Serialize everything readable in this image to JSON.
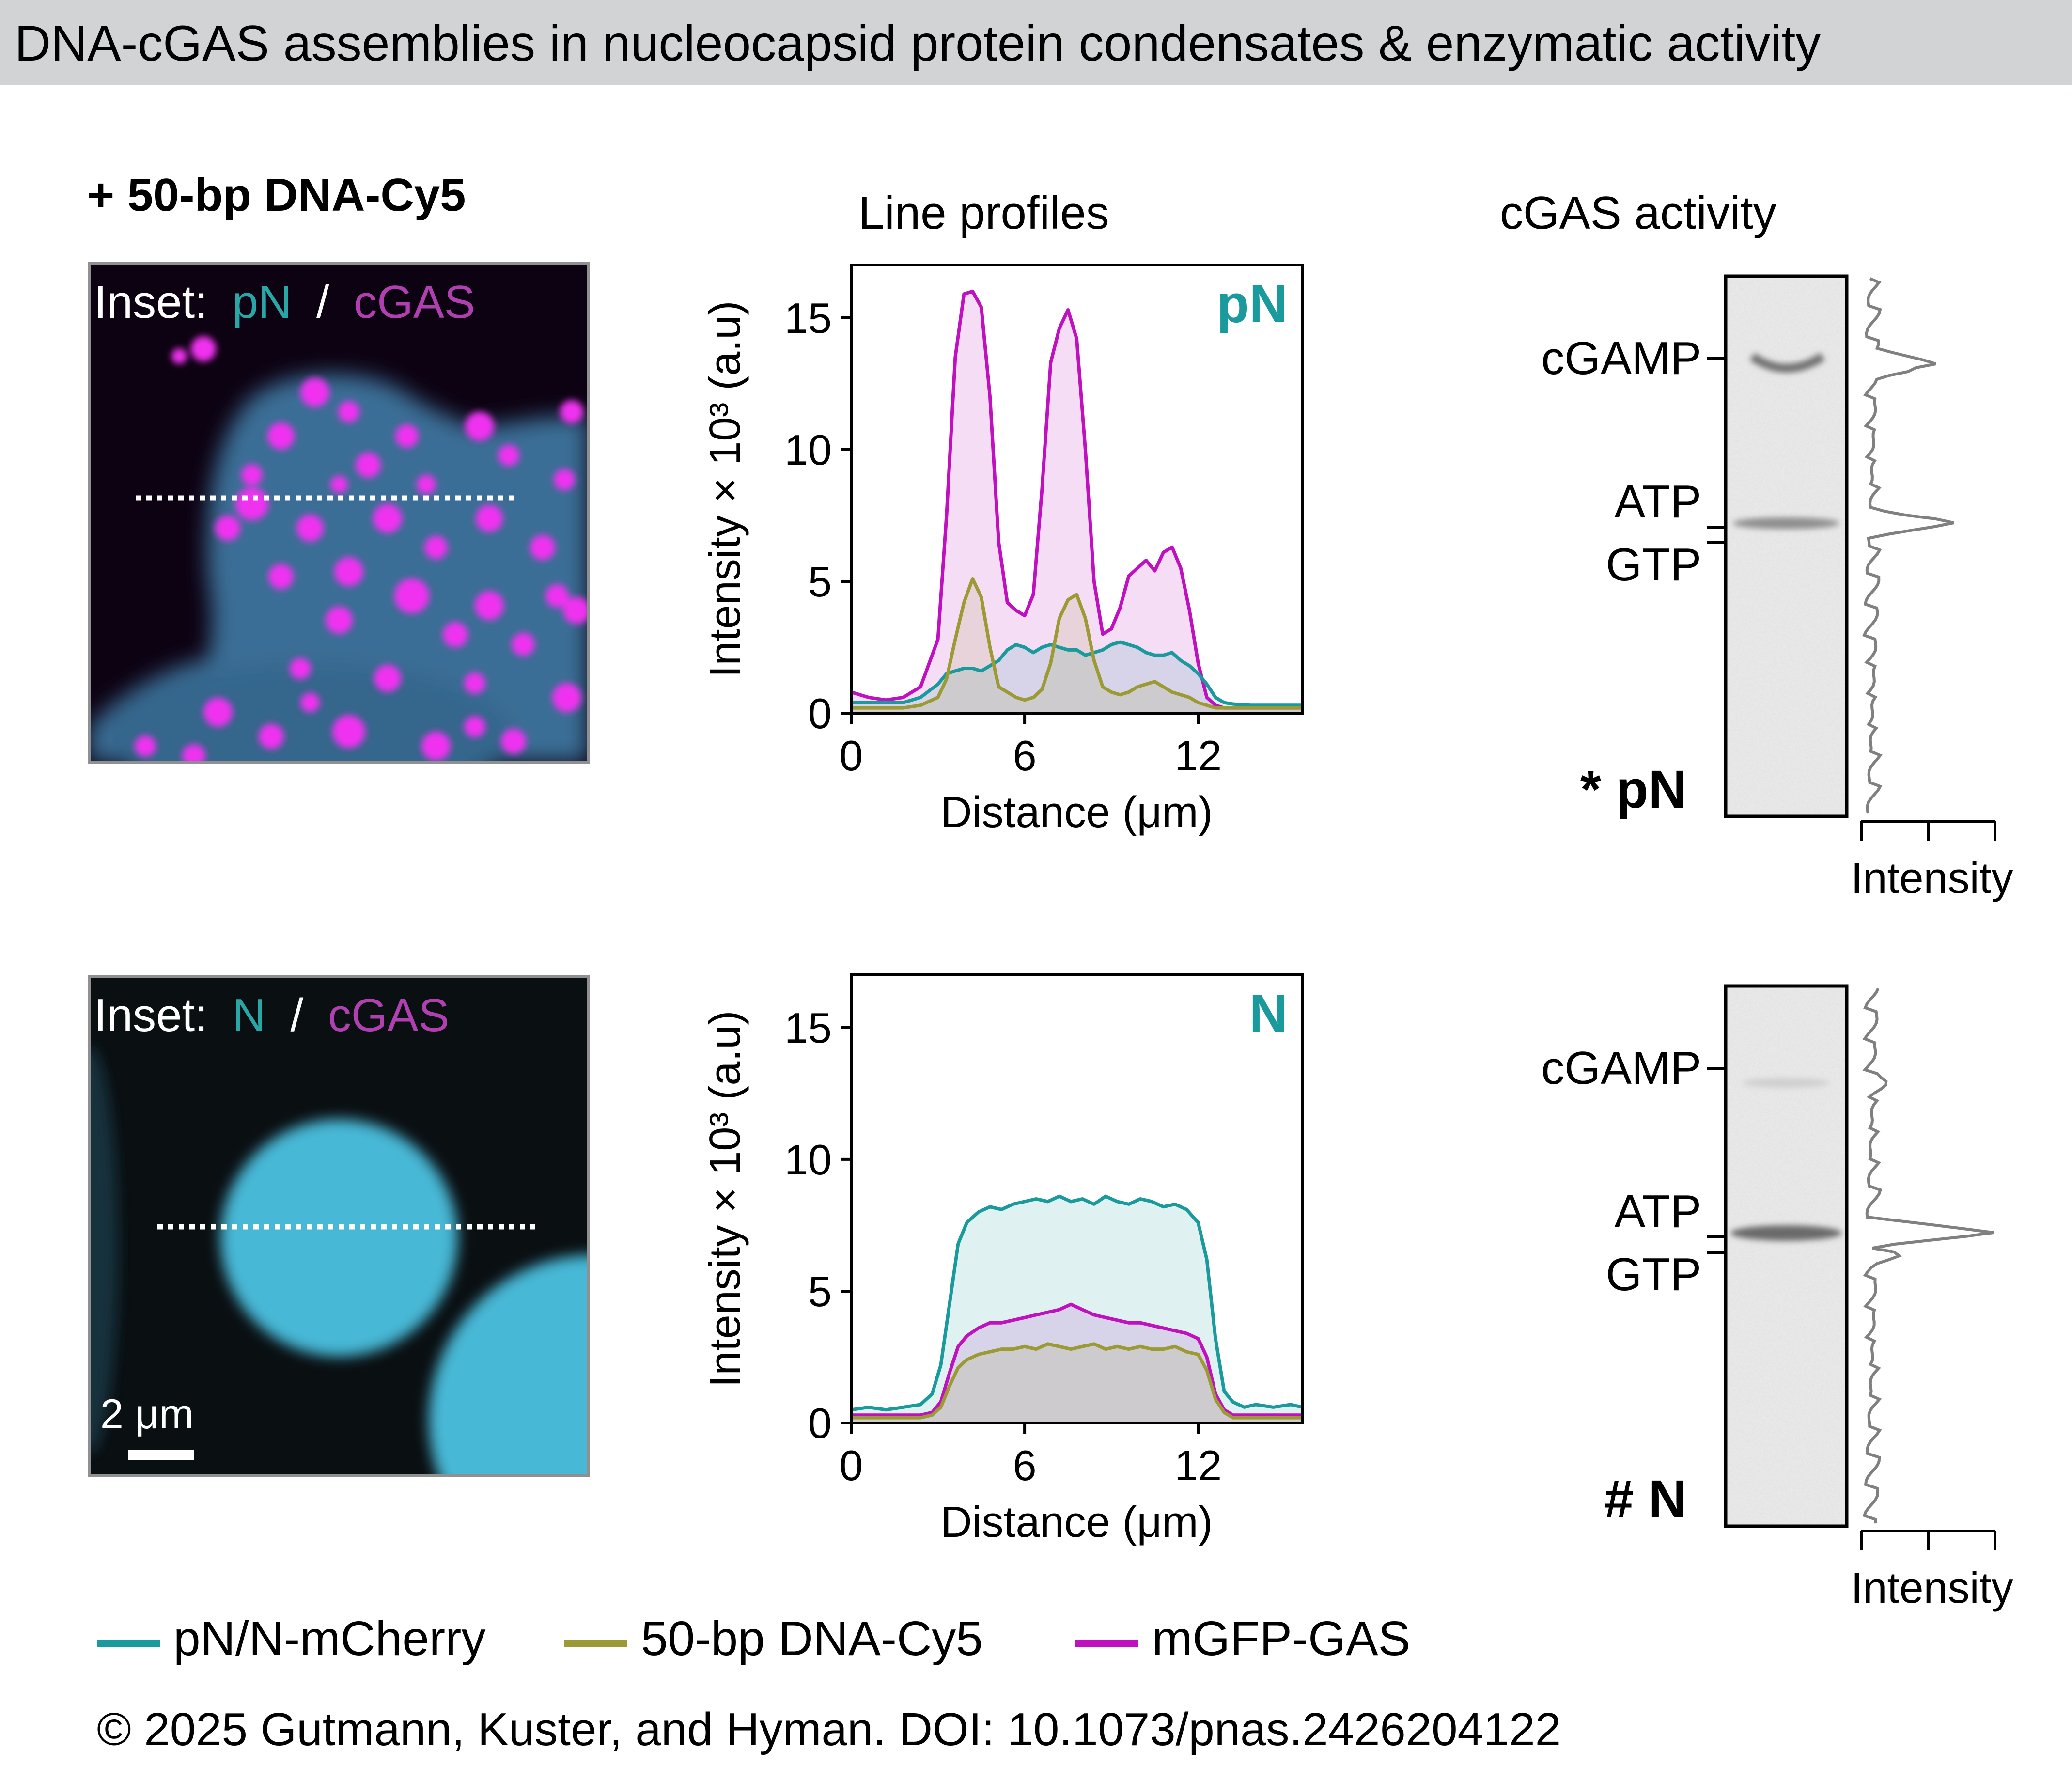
{
  "header": {
    "title": "DNA-cGAS assemblies in nucleocapsid protein condensates & enzymatic activity"
  },
  "condition_label": "+ 50-bp DNA-Cy5",
  "column_titles": {
    "profiles": "Line profiles",
    "activity": "cGAS activity"
  },
  "panels": [
    {
      "id": "pN",
      "inset": {
        "prefix": "Inset:",
        "protein": "pN",
        "separator": "/",
        "partner": "cGAS"
      },
      "chart_data": {
        "type": "area",
        "panel_label": "pN",
        "xlabel": "Distance (μm)",
        "ylabel": "Intensity × 10³ (a.u)",
        "xlim": [
          0,
          15.6
        ],
        "ylim": [
          0,
          17
        ],
        "xticks": [
          0,
          6,
          12
        ],
        "yticks": [
          0,
          5,
          10,
          15
        ],
        "grid": false,
        "x": [
          0,
          0.6,
          1.2,
          1.8,
          2.4,
          3.0,
          3.3,
          3.6,
          3.9,
          4.2,
          4.5,
          4.8,
          5.1,
          5.4,
          5.7,
          6.0,
          6.3,
          6.6,
          6.9,
          7.2,
          7.5,
          7.8,
          8.1,
          8.4,
          8.7,
          9.0,
          9.3,
          9.6,
          9.9,
          10.2,
          10.5,
          10.8,
          11.1,
          11.4,
          11.7,
          12.0,
          12.3,
          12.6,
          12.9,
          13.2,
          13.8,
          14.4,
          15.0,
          15.6
        ],
        "series": [
          {
            "name": "pN/N-mCherry",
            "values": [
              0.4,
              0.4,
              0.4,
              0.4,
              0.6,
              1.1,
              1.5,
              1.6,
              1.7,
              1.7,
              1.6,
              1.8,
              2.0,
              2.4,
              2.6,
              2.5,
              2.3,
              2.5,
              2.6,
              2.5,
              2.4,
              2.4,
              2.2,
              2.3,
              2.4,
              2.6,
              2.7,
              2.6,
              2.5,
              2.3,
              2.2,
              2.2,
              2.3,
              2.0,
              1.8,
              1.5,
              1.1,
              0.6,
              0.4,
              0.35,
              0.3,
              0.3,
              0.3,
              0.3
            ]
          },
          {
            "name": "50-bp DNA-Cy5",
            "values": [
              0.2,
              0.2,
              0.2,
              0.2,
              0.3,
              0.6,
              1.3,
              2.8,
              4.2,
              5.1,
              4.4,
              2.5,
              1.0,
              0.8,
              0.6,
              0.5,
              0.6,
              0.9,
              1.9,
              3.6,
              4.3,
              4.5,
              3.6,
              2.0,
              1.0,
              0.8,
              0.7,
              0.8,
              1.0,
              1.1,
              1.2,
              1.0,
              0.8,
              0.7,
              0.6,
              0.4,
              0.3,
              0.2,
              0.2,
              0.2,
              0.2,
              0.2,
              0.2,
              0.2
            ]
          },
          {
            "name": "mGFP-GAS",
            "values": [
              0.8,
              0.6,
              0.5,
              0.6,
              1.0,
              2.8,
              7.5,
              13.5,
              15.9,
              16.0,
              15.4,
              12.0,
              6.5,
              4.2,
              3.9,
              3.7,
              4.5,
              8.5,
              13.3,
              14.6,
              15.3,
              14.2,
              10.0,
              5.0,
              3.0,
              3.2,
              4.0,
              5.2,
              5.5,
              5.8,
              5.4,
              6.1,
              6.3,
              5.5,
              3.9,
              1.9,
              0.6,
              0.3,
              0.2,
              0.2,
              0.2,
              0.2,
              0.2,
              0.2
            ]
          }
        ]
      },
      "gel": {
        "marker_labels": {
          "product": "cGAMP",
          "substrate_1": "ATP",
          "substrate_2": "GTP"
        },
        "lane_label": "* pN",
        "profile_xlabel": "Intensity"
      }
    },
    {
      "id": "N",
      "inset": {
        "prefix": "Inset:",
        "protein": "N",
        "separator": "/",
        "partner": "cGAS"
      },
      "scale_bar": "2 μm",
      "chart_data": {
        "type": "area",
        "panel_label": "N",
        "xlabel": "Distance (μm)",
        "ylabel": "Intensity × 10³ (a.u)",
        "xlim": [
          0,
          15.6
        ],
        "ylim": [
          0,
          17
        ],
        "xticks": [
          0,
          6,
          12
        ],
        "yticks": [
          0,
          5,
          10,
          15
        ],
        "grid": false,
        "x": [
          0,
          0.6,
          1.2,
          1.8,
          2.4,
          2.8,
          3.1,
          3.4,
          3.7,
          4.0,
          4.4,
          4.8,
          5.2,
          5.6,
          6.0,
          6.4,
          6.8,
          7.2,
          7.6,
          8.0,
          8.4,
          8.8,
          9.2,
          9.6,
          10.0,
          10.4,
          10.8,
          11.2,
          11.6,
          12.0,
          12.3,
          12.6,
          12.9,
          13.2,
          13.6,
          14.0,
          14.6,
          15.2,
          15.6
        ],
        "series": [
          {
            "name": "pN/N-mCherry",
            "values": [
              0.5,
              0.6,
              0.5,
              0.6,
              0.7,
              1.1,
              2.2,
              4.5,
              6.8,
              7.6,
              8.0,
              8.2,
              8.1,
              8.3,
              8.4,
              8.5,
              8.4,
              8.6,
              8.4,
              8.5,
              8.3,
              8.6,
              8.4,
              8.3,
              8.5,
              8.4,
              8.2,
              8.3,
              8.1,
              7.6,
              6.2,
              3.2,
              1.2,
              0.8,
              0.6,
              0.7,
              0.6,
              0.7,
              0.6
            ]
          },
          {
            "name": "50-bp DNA-Cy5",
            "values": [
              0.2,
              0.2,
              0.2,
              0.2,
              0.2,
              0.3,
              0.6,
              1.4,
              2.1,
              2.4,
              2.6,
              2.7,
              2.8,
              2.8,
              2.9,
              2.8,
              3.0,
              2.9,
              2.8,
              2.9,
              3.0,
              2.8,
              2.9,
              2.8,
              2.9,
              2.8,
              2.8,
              2.9,
              2.7,
              2.6,
              2.0,
              0.9,
              0.4,
              0.2,
              0.2,
              0.2,
              0.2,
              0.2,
              0.2
            ]
          },
          {
            "name": "mGFP-GAS",
            "values": [
              0.3,
              0.3,
              0.3,
              0.3,
              0.3,
              0.4,
              0.8,
              1.9,
              2.9,
              3.3,
              3.6,
              3.8,
              3.8,
              3.9,
              4.0,
              4.1,
              4.2,
              4.3,
              4.5,
              4.3,
              4.1,
              4.0,
              3.9,
              3.8,
              3.8,
              3.7,
              3.6,
              3.5,
              3.4,
              3.2,
              2.5,
              1.1,
              0.5,
              0.3,
              0.3,
              0.3,
              0.3,
              0.3,
              0.3
            ]
          }
        ]
      },
      "gel": {
        "marker_labels": {
          "product": "cGAMP",
          "substrate_1": "ATP",
          "substrate_2": "GTP"
        },
        "lane_label": "# N",
        "profile_xlabel": "Intensity"
      }
    }
  ],
  "legend": [
    {
      "label": "pN/N-mCherry",
      "color": "#1a9a9c"
    },
    {
      "label": "50-bp DNA-Cy5",
      "color": "#9c9a34"
    },
    {
      "label": "mGFP-GAS",
      "color": "#c010c0"
    }
  ],
  "colors": {
    "pN_N": "#1a9a9c",
    "dna": "#9c9a34",
    "cgas": "#c010c0",
    "inset_cgas_text": "#b040b0",
    "inset_protein_text": "#2aa6a6",
    "profile_trace": "#808080",
    "banner": "#d2d3d4"
  },
  "footer": {
    "copyright": "© 2025 Gutmann, Kuster, and Hyman. DOI: 10.1073/pnas.2426204122"
  }
}
